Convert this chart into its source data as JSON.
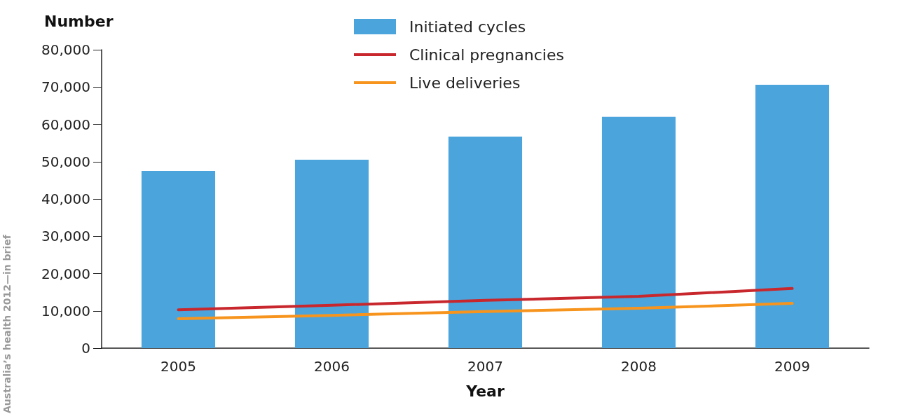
{
  "chart_data": {
    "type": "bar",
    "xlabel": "Year",
    "ylabel": "Number",
    "categories": [
      "2005",
      "2006",
      "2007",
      "2008",
      "2009"
    ],
    "series": [
      {
        "name": "Initiated cycles",
        "color": "#4ba5dc",
        "values": [
          47500,
          50500,
          56700,
          62000,
          70600
        ]
      },
      {
        "name": "Clinical pregnancies",
        "type": "line",
        "color": "#c8282d",
        "values": [
          10300,
          11500,
          12800,
          13900,
          16000
        ]
      },
      {
        "name": "Live deliveries",
        "type": "line",
        "color": "#f7941d",
        "values": [
          7900,
          8800,
          9800,
          10700,
          12000
        ]
      }
    ],
    "ylim": [
      0,
      80000
    ],
    "yticks": [
      {
        "value": 0,
        "label": "0"
      },
      {
        "value": 10000,
        "label": "10,000"
      },
      {
        "value": 20000,
        "label": "20,000"
      },
      {
        "value": 30000,
        "label": "30,000"
      },
      {
        "value": 40000,
        "label": "40,000"
      },
      {
        "value": 50000,
        "label": "50,000"
      },
      {
        "value": 60000,
        "label": "60,000"
      },
      {
        "value": 70000,
        "label": "70,000"
      },
      {
        "value": 80000,
        "label": "80,000"
      }
    ],
    "grid": false,
    "legend": "top",
    "marker": "none",
    "line_style": "solid",
    "annotations": [
      "Australia’s health 2012—in brief"
    ]
  }
}
